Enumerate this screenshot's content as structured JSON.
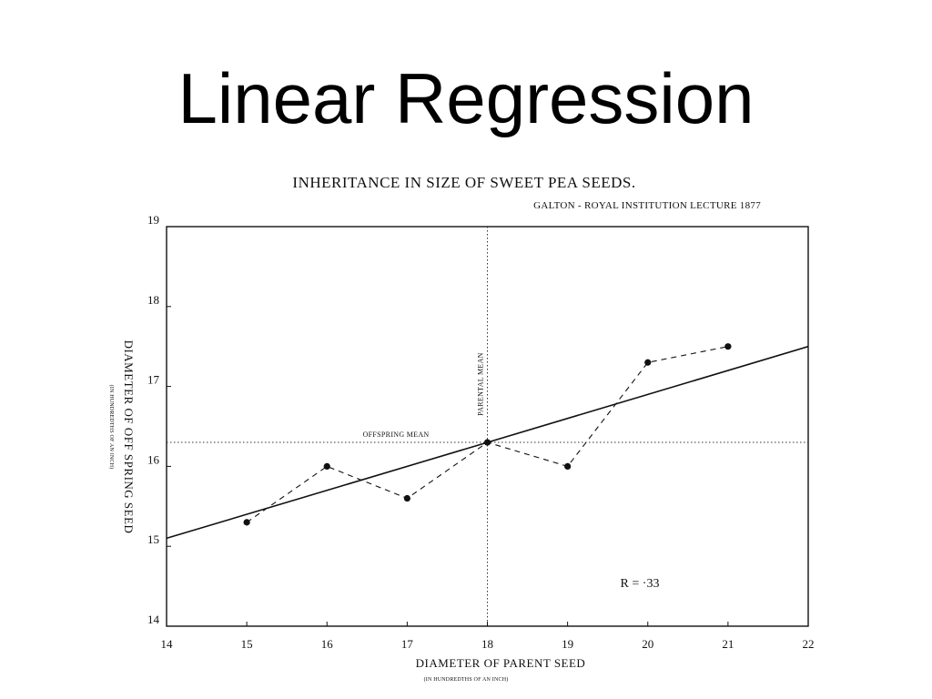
{
  "slide": {
    "title": "Linear Regression"
  },
  "figure": {
    "title": "INHERITANCE IN SIZE OF SWEET PEA SEEDS.",
    "subtitle": "GALTON - ROYAL INSTITUTION LECTURE 1877",
    "xlabel": "DIAMETER OF PARENT SEED",
    "xlabel_sub": "(IN HUNDREDTHS OF AN INCH)",
    "ylabel": "DIAMETER OF OFF SPRING SEED",
    "ylabel_sub": "(IN HUNDREDTHS OF AN INCH)",
    "annotation_offspring_mean": "OFFSPRING MEAN",
    "annotation_parental_mean": "PARENTAL MEAN",
    "annotation_r": "R = ·33"
  },
  "colors": {
    "ink": "#111111",
    "background": "#ffffff"
  },
  "chart_data": {
    "type": "scatter",
    "title": "INHERITANCE IN SIZE OF SWEET PEA SEEDS.",
    "subtitle": "GALTON - ROYAL INSTITUTION LECTURE 1877",
    "xlabel": "DIAMETER OF PARENT SEED",
    "ylabel": "DIAMETER OF OFF SPRING SEED",
    "xlim": [
      14,
      22
    ],
    "ylim": [
      14,
      19
    ],
    "xticks": [
      14,
      15,
      16,
      17,
      18,
      19,
      20,
      21,
      22
    ],
    "xtick_labels": [
      "14",
      "15",
      "16",
      "17",
      "18",
      "19",
      "20",
      "21",
      "22"
    ],
    "yticks": [
      14,
      15,
      16,
      17,
      18,
      19
    ],
    "ytick_labels": [
      "14",
      "15",
      "16",
      "17",
      "18",
      "19"
    ],
    "grid": false,
    "series": [
      {
        "style": "dashed-with-points",
        "x": [
          15,
          16,
          17,
          18,
          19,
          20,
          21
        ],
        "y": [
          15.3,
          16.0,
          15.6,
          16.3,
          16.0,
          17.3,
          17.5
        ]
      },
      {
        "style": "solid-line",
        "x": [
          14,
          22
        ],
        "y": [
          15.1,
          17.5
        ]
      }
    ],
    "reference_lines": {
      "offspring_mean_y": 16.3,
      "parental_mean_x": 18
    },
    "annotations": [
      "OFFSPRING MEAN",
      "PARENTAL MEAN",
      "R = ·33"
    ]
  }
}
